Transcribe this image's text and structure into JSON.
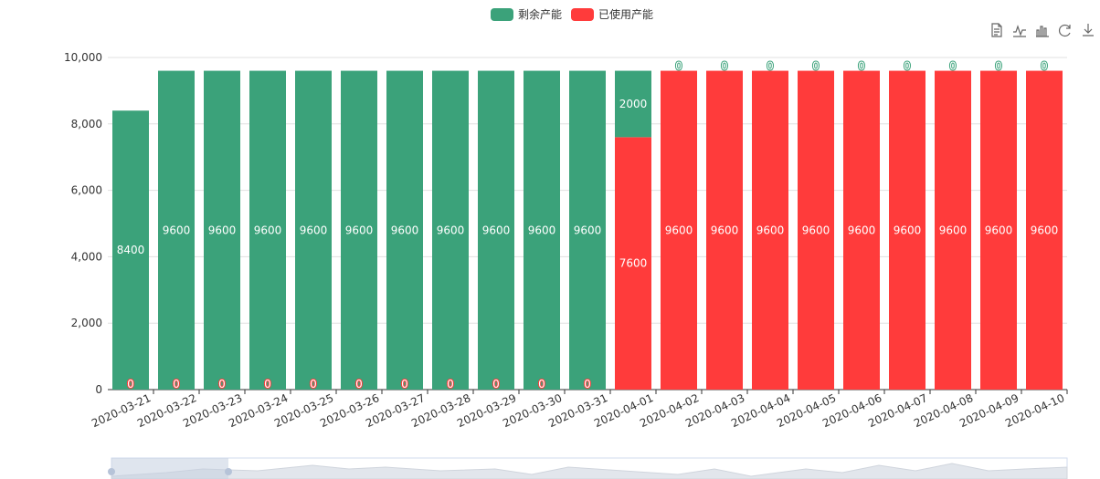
{
  "legend": {
    "items": [
      {
        "label": "剩余产能",
        "color": "#3ba27a"
      },
      {
        "label": "已使用产能",
        "color": "#ff3b3b"
      }
    ]
  },
  "toolbox": {
    "icons": [
      "data-view-icon",
      "line-chart-icon",
      "bar-chart-icon",
      "restore-icon",
      "download-icon"
    ]
  },
  "colors": {
    "remaining": "#3ba27a",
    "used": "#ff3b3b",
    "grid": "#e0e0e0",
    "axis": "#333333",
    "zoom_bg": "#eef1f6",
    "zoom_handle": "#c4cfe0"
  },
  "chart_data": {
    "type": "bar",
    "stacked": true,
    "categories": [
      "2020-03-21",
      "2020-03-22",
      "2020-03-23",
      "2020-03-24",
      "2020-03-25",
      "2020-03-26",
      "2020-03-27",
      "2020-03-28",
      "2020-03-29",
      "2020-03-30",
      "2020-03-31",
      "2020-04-01",
      "2020-04-02",
      "2020-04-03",
      "2020-04-04",
      "2020-04-05",
      "2020-04-06",
      "2020-04-07",
      "2020-04-08",
      "2020-04-09",
      "2020-04-10"
    ],
    "series": [
      {
        "name": "已使用产能",
        "values": [
          0,
          0,
          0,
          0,
          0,
          0,
          0,
          0,
          0,
          0,
          0,
          7600,
          9600,
          9600,
          9600,
          9600,
          9600,
          9600,
          9600,
          9600,
          9600
        ]
      },
      {
        "name": "剩余产能",
        "values": [
          8400,
          9600,
          9600,
          9600,
          9600,
          9600,
          9600,
          9600,
          9600,
          9600,
          9600,
          2000,
          0,
          0,
          0,
          0,
          0,
          0,
          0,
          0,
          0
        ]
      }
    ],
    "y_ticks": [
      "0",
      "2,000",
      "4,000",
      "6,000",
      "8,000",
      "10,000"
    ],
    "ylim": [
      0,
      10000
    ],
    "grid": true,
    "legend_position": "top-center",
    "datazoom": true
  }
}
